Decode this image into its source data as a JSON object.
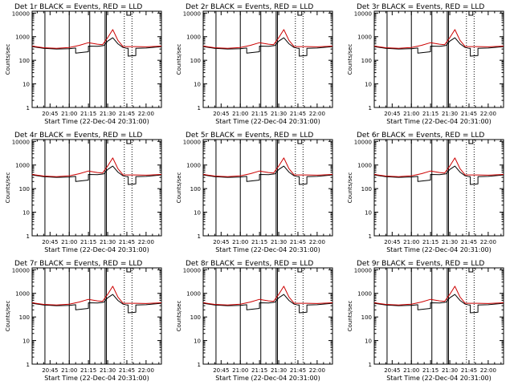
{
  "figure": {
    "background": "#ffffff",
    "axis_color": "#000000"
  },
  "shared": {
    "ylabel": "Counts/sec",
    "xlabel": "Start Time (22-Dec-04 20:31:00)",
    "x_tick_labels": [
      "20:45",
      "21:00",
      "21:15",
      "21:30",
      "21:45",
      "22:00"
    ],
    "y_tick_labels": [
      "1",
      "10",
      "100",
      "1000",
      "10000"
    ]
  },
  "chart_data": [
    {
      "type": "line",
      "title": "Det 1r  BLACK = Events, RED = LLD",
      "xlabel": "Start Time (22-Dec-04 20:31:00)",
      "ylabel": "Counts/sec",
      "yscale": "log",
      "ylim": [
        1,
        12000
      ],
      "xlim": [
        "20:31",
        "22:12"
      ],
      "series": [
        {
          "color": "#000000",
          "x": [
            "20:31",
            "20:40",
            "20:50",
            "21:00",
            "21:05",
            "21:05",
            "21:15",
            "21:15",
            "21:22",
            "21:27",
            "21:30",
            "21:34",
            "21:38",
            "21:42",
            "21:45",
            "21:46",
            "21:46",
            "21:52",
            "21:52",
            "22:00",
            "22:12"
          ],
          "y": [
            380,
            320,
            300,
            310,
            330,
            200,
            230,
            400,
            390,
            420,
            650,
            900,
            500,
            350,
            320,
            320,
            150,
            160,
            320,
            330,
            380
          ]
        },
        {
          "color": "#cc0000",
          "x": [
            "20:31",
            "20:40",
            "20:50",
            "21:00",
            "21:08",
            "21:15",
            "21:22",
            "21:26",
            "21:30",
            "21:34",
            "21:38",
            "21:42",
            "21:46",
            "21:52",
            "22:00",
            "22:12"
          ],
          "y": [
            400,
            340,
            320,
            350,
            430,
            560,
            480,
            460,
            900,
            2000,
            700,
            380,
            380,
            380,
            370,
            400
          ]
        }
      ]
    },
    {
      "type": "line",
      "title": "Det 2r  BLACK = Events, RED = LLD",
      "xlabel": "Start Time (22-Dec-04 20:31:00)",
      "ylabel": "Counts/sec",
      "yscale": "log",
      "ylim": [
        1,
        12000
      ],
      "xlim": [
        "20:31",
        "22:12"
      ],
      "series": [
        {
          "color": "#000000",
          "x": [
            "20:31",
            "20:40",
            "20:50",
            "21:00",
            "21:05",
            "21:05",
            "21:15",
            "21:15",
            "21:22",
            "21:27",
            "21:30",
            "21:34",
            "21:38",
            "21:42",
            "21:45",
            "21:46",
            "21:46",
            "21:52",
            "21:52",
            "22:00",
            "22:12"
          ],
          "y": [
            380,
            320,
            300,
            310,
            330,
            200,
            230,
            400,
            390,
            420,
            650,
            900,
            500,
            350,
            320,
            320,
            150,
            160,
            320,
            330,
            380
          ]
        },
        {
          "color": "#cc0000",
          "x": [
            "20:31",
            "20:40",
            "20:50",
            "21:00",
            "21:08",
            "21:15",
            "21:22",
            "21:26",
            "21:30",
            "21:34",
            "21:38",
            "21:42",
            "21:46",
            "21:52",
            "22:00",
            "22:12"
          ],
          "y": [
            400,
            340,
            320,
            350,
            430,
            560,
            480,
            460,
            900,
            2000,
            700,
            380,
            380,
            380,
            370,
            400
          ]
        }
      ]
    },
    {
      "type": "line",
      "title": "Det 3r  BLACK = Events, RED = LLD",
      "xlabel": "Start Time (22-Dec-04 20:31:00)",
      "ylabel": "Counts/sec",
      "yscale": "log",
      "ylim": [
        1,
        12000
      ],
      "xlim": [
        "20:31",
        "22:12"
      ],
      "series": [
        {
          "color": "#000000",
          "x": [
            "20:31",
            "20:40",
            "20:50",
            "21:00",
            "21:05",
            "21:05",
            "21:15",
            "21:15",
            "21:22",
            "21:27",
            "21:30",
            "21:34",
            "21:38",
            "21:42",
            "21:45",
            "21:46",
            "21:46",
            "21:52",
            "21:52",
            "22:00",
            "22:12"
          ],
          "y": [
            380,
            320,
            300,
            310,
            330,
            200,
            230,
            400,
            390,
            420,
            650,
            900,
            500,
            350,
            320,
            320,
            150,
            160,
            320,
            330,
            380
          ]
        },
        {
          "color": "#cc0000",
          "x": [
            "20:31",
            "20:40",
            "20:50",
            "21:00",
            "21:08",
            "21:15",
            "21:22",
            "21:26",
            "21:30",
            "21:34",
            "21:38",
            "21:42",
            "21:46",
            "21:52",
            "22:00",
            "22:12"
          ],
          "y": [
            400,
            340,
            320,
            350,
            430,
            560,
            480,
            460,
            900,
            2000,
            700,
            380,
            380,
            380,
            370,
            400
          ]
        }
      ]
    },
    {
      "type": "line",
      "title": "Det 4r  BLACK = Events, RED = LLD",
      "xlabel": "Start Time (22-Dec-04 20:31:00)",
      "ylabel": "Counts/sec",
      "yscale": "log",
      "ylim": [
        1,
        12000
      ],
      "xlim": [
        "20:31",
        "22:12"
      ],
      "series": [
        {
          "color": "#000000",
          "x": [
            "20:31",
            "20:40",
            "20:50",
            "21:00",
            "21:05",
            "21:05",
            "21:15",
            "21:15",
            "21:22",
            "21:27",
            "21:30",
            "21:34",
            "21:38",
            "21:42",
            "21:45",
            "21:46",
            "21:46",
            "21:52",
            "21:52",
            "22:00",
            "22:12"
          ],
          "y": [
            380,
            320,
            300,
            310,
            330,
            200,
            230,
            400,
            390,
            420,
            650,
            900,
            500,
            350,
            320,
            320,
            150,
            160,
            320,
            330,
            380
          ]
        },
        {
          "color": "#cc0000",
          "x": [
            "20:31",
            "20:40",
            "20:50",
            "21:00",
            "21:08",
            "21:15",
            "21:22",
            "21:26",
            "21:30",
            "21:34",
            "21:38",
            "21:42",
            "21:46",
            "21:52",
            "22:00",
            "22:12"
          ],
          "y": [
            400,
            340,
            320,
            350,
            430,
            560,
            480,
            460,
            900,
            2000,
            700,
            380,
            380,
            380,
            370,
            400
          ]
        }
      ]
    },
    {
      "type": "line",
      "title": "Det 5r  BLACK = Events, RED = LLD",
      "xlabel": "Start Time (22-Dec-04 20:31:00)",
      "ylabel": "Counts/sec",
      "yscale": "log",
      "ylim": [
        1,
        12000
      ],
      "xlim": [
        "20:31",
        "22:12"
      ],
      "series": [
        {
          "color": "#000000",
          "x": [
            "20:31",
            "20:40",
            "20:50",
            "21:00",
            "21:05",
            "21:05",
            "21:15",
            "21:15",
            "21:22",
            "21:27",
            "21:30",
            "21:34",
            "21:38",
            "21:42",
            "21:45",
            "21:46",
            "21:46",
            "21:52",
            "21:52",
            "22:00",
            "22:12"
          ],
          "y": [
            380,
            320,
            300,
            310,
            330,
            200,
            230,
            400,
            390,
            420,
            650,
            900,
            500,
            350,
            320,
            320,
            150,
            160,
            320,
            330,
            380
          ]
        },
        {
          "color": "#cc0000",
          "x": [
            "20:31",
            "20:40",
            "20:50",
            "21:00",
            "21:08",
            "21:15",
            "21:22",
            "21:26",
            "21:30",
            "21:34",
            "21:38",
            "21:42",
            "21:46",
            "21:52",
            "22:00",
            "22:12"
          ],
          "y": [
            400,
            340,
            320,
            350,
            430,
            560,
            480,
            460,
            900,
            2000,
            700,
            380,
            380,
            380,
            370,
            400
          ]
        }
      ]
    },
    {
      "type": "line",
      "title": "Det 6r  BLACK = Events, RED = LLD",
      "xlabel": "Start Time (22-Dec-04 20:31:00)",
      "ylabel": "Counts/sec",
      "yscale": "log",
      "ylim": [
        1,
        12000
      ],
      "xlim": [
        "20:31",
        "22:12"
      ],
      "series": [
        {
          "color": "#000000",
          "x": [
            "20:31",
            "20:40",
            "20:50",
            "21:00",
            "21:05",
            "21:05",
            "21:15",
            "21:15",
            "21:22",
            "21:27",
            "21:30",
            "21:34",
            "21:38",
            "21:42",
            "21:45",
            "21:46",
            "21:46",
            "21:52",
            "21:52",
            "22:00",
            "22:12"
          ],
          "y": [
            380,
            320,
            300,
            310,
            330,
            200,
            230,
            400,
            390,
            420,
            650,
            900,
            500,
            350,
            320,
            320,
            150,
            160,
            320,
            330,
            380
          ]
        },
        {
          "color": "#cc0000",
          "x": [
            "20:31",
            "20:40",
            "20:50",
            "21:00",
            "21:08",
            "21:15",
            "21:22",
            "21:26",
            "21:30",
            "21:34",
            "21:38",
            "21:42",
            "21:46",
            "21:52",
            "22:00",
            "22:12"
          ],
          "y": [
            400,
            340,
            320,
            350,
            430,
            560,
            480,
            460,
            900,
            2000,
            700,
            380,
            380,
            380,
            370,
            400
          ]
        }
      ]
    },
    {
      "type": "line",
      "title": "Det 7r  BLACK = Events, RED = LLD",
      "xlabel": "Start Time (22-Dec-04 20:31:00)",
      "ylabel": "Counts/sec",
      "yscale": "log",
      "ylim": [
        1,
        12000
      ],
      "xlim": [
        "20:31",
        "22:12"
      ],
      "series": [
        {
          "color": "#000000",
          "x": [
            "20:31",
            "20:40",
            "20:50",
            "21:00",
            "21:05",
            "21:05",
            "21:15",
            "21:15",
            "21:22",
            "21:27",
            "21:30",
            "21:34",
            "21:38",
            "21:42",
            "21:45",
            "21:46",
            "21:46",
            "21:52",
            "21:52",
            "22:00",
            "22:12"
          ],
          "y": [
            380,
            320,
            300,
            310,
            330,
            200,
            230,
            400,
            390,
            420,
            650,
            900,
            500,
            350,
            320,
            320,
            150,
            160,
            320,
            330,
            380
          ]
        },
        {
          "color": "#cc0000",
          "x": [
            "20:31",
            "20:40",
            "20:50",
            "21:00",
            "21:08",
            "21:15",
            "21:22",
            "21:26",
            "21:30",
            "21:34",
            "21:38",
            "21:42",
            "21:46",
            "21:52",
            "22:00",
            "22:12"
          ],
          "y": [
            400,
            340,
            320,
            350,
            430,
            560,
            480,
            460,
            900,
            2000,
            700,
            380,
            380,
            380,
            370,
            400
          ]
        }
      ]
    },
    {
      "type": "line",
      "title": "Det 8r  BLACK = Events, RED = LLD",
      "xlabel": "Start Time (22-Dec-04 20:31:00)",
      "ylabel": "Counts/sec",
      "yscale": "log",
      "ylim": [
        1,
        12000
      ],
      "xlim": [
        "20:31",
        "22:12"
      ],
      "series": [
        {
          "color": "#000000",
          "x": [
            "20:31",
            "20:40",
            "20:50",
            "21:00",
            "21:05",
            "21:05",
            "21:15",
            "21:15",
            "21:22",
            "21:27",
            "21:30",
            "21:34",
            "21:38",
            "21:42",
            "21:45",
            "21:46",
            "21:46",
            "21:52",
            "21:52",
            "22:00",
            "22:12"
          ],
          "y": [
            380,
            320,
            300,
            310,
            330,
            200,
            230,
            400,
            390,
            420,
            650,
            900,
            500,
            350,
            320,
            320,
            150,
            160,
            320,
            330,
            380
          ]
        },
        {
          "color": "#cc0000",
          "x": [
            "20:31",
            "20:40",
            "20:50",
            "21:00",
            "21:08",
            "21:15",
            "21:22",
            "21:26",
            "21:30",
            "21:34",
            "21:38",
            "21:42",
            "21:46",
            "21:52",
            "22:00",
            "22:12"
          ],
          "y": [
            400,
            340,
            320,
            350,
            430,
            560,
            480,
            460,
            900,
            2000,
            700,
            380,
            380,
            380,
            370,
            400
          ]
        }
      ]
    },
    {
      "type": "line",
      "title": "Det 9r  BLACK = Events, RED = LLD",
      "xlabel": "Start Time (22-Dec-04 20:31:00)",
      "ylabel": "Counts/sec",
      "yscale": "log",
      "ylim": [
        1,
        12000
      ],
      "xlim": [
        "20:31",
        "22:12"
      ],
      "series": [
        {
          "color": "#000000",
          "x": [
            "20:31",
            "20:40",
            "20:50",
            "21:00",
            "21:05",
            "21:05",
            "21:15",
            "21:15",
            "21:22",
            "21:27",
            "21:30",
            "21:34",
            "21:38",
            "21:42",
            "21:45",
            "21:46",
            "21:46",
            "21:52",
            "21:52",
            "22:00",
            "22:12"
          ],
          "y": [
            380,
            320,
            300,
            310,
            330,
            200,
            230,
            400,
            390,
            420,
            650,
            900,
            500,
            350,
            320,
            320,
            150,
            160,
            320,
            330,
            380
          ]
        },
        {
          "color": "#cc0000",
          "x": [
            "20:31",
            "20:40",
            "20:50",
            "21:00",
            "21:08",
            "21:15",
            "21:22",
            "21:26",
            "21:30",
            "21:34",
            "21:38",
            "21:42",
            "21:46",
            "21:52",
            "22:00",
            "22:12"
          ],
          "y": [
            400,
            340,
            320,
            350,
            430,
            560,
            480,
            460,
            900,
            2000,
            700,
            380,
            380,
            380,
            370,
            400
          ]
        }
      ]
    }
  ],
  "markers": {
    "solid_times": [
      "20:41",
      "21:00",
      "21:16",
      "21:28",
      "21:29"
    ],
    "dotted_times": [
      "21:43",
      "21:49"
    ],
    "top_box": {
      "start": "21:45",
      "end": "21:48"
    }
  }
}
